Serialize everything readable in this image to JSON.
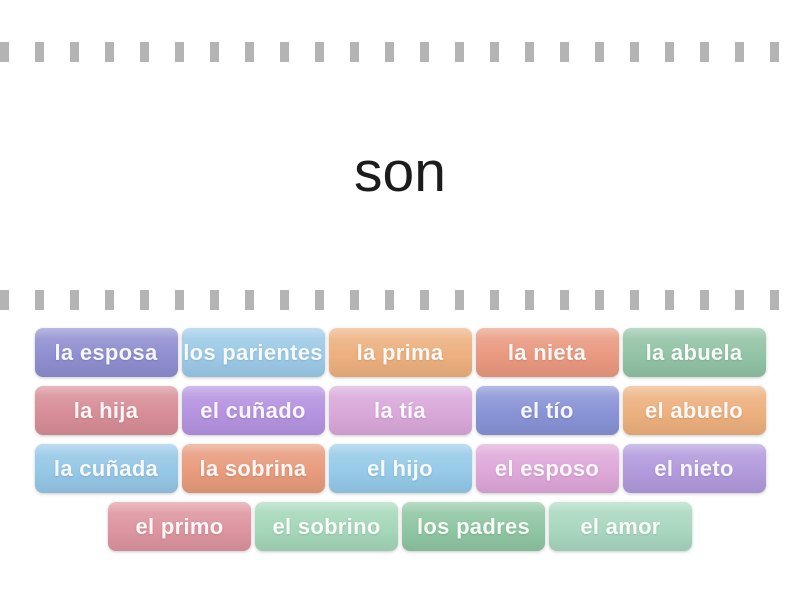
{
  "question": {
    "text": "son",
    "color": "#1c1c1c"
  },
  "perforation": {
    "color": "#b4b4b4"
  },
  "tile_text_color": "#ffffff",
  "answer_rows": [
    [
      {
        "label": "la esposa",
        "color": "#8f8ed0"
      },
      {
        "label": "los parientes",
        "color": "#9ccae7"
      },
      {
        "label": "la prima",
        "color": "#edb07e"
      },
      {
        "label": "la nieta",
        "color": "#e9997f"
      },
      {
        "label": "la abuela",
        "color": "#92c3a6"
      }
    ],
    [
      {
        "label": "la hija",
        "color": "#d78d97"
      },
      {
        "label": "el cuñado",
        "color": "#b593e0"
      },
      {
        "label": "la tía",
        "color": "#d9a8da"
      },
      {
        "label": "el tío",
        "color": "#8893d6"
      },
      {
        "label": "el abuelo",
        "color": "#edb07e"
      }
    ],
    [
      {
        "label": "la cuñada",
        "color": "#95c7e6"
      },
      {
        "label": "la sobrina",
        "color": "#e89b7c"
      },
      {
        "label": "el hijo",
        "color": "#95cae8"
      },
      {
        "label": "el esposo",
        "color": "#dea8d9"
      },
      {
        "label": "el nieto",
        "color": "#b29adc"
      }
    ],
    [
      {
        "label": "el primo",
        "color": "#dd95a0"
      },
      {
        "label": "el sobrino",
        "color": "#a5d7ba"
      },
      {
        "label": "los padres",
        "color": "#8fc6a3"
      },
      {
        "label": "el amor",
        "color": "#a9d7c0"
      }
    ]
  ]
}
